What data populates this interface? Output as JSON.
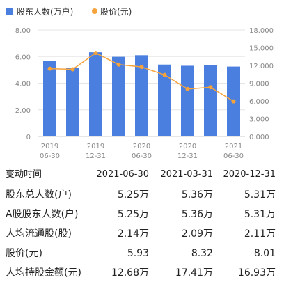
{
  "chart_data": {
    "type": "bar+line",
    "legend": [
      {
        "name": "股东人数(万户)",
        "color": "#4a7fe0",
        "shape": "square"
      },
      {
        "name": "股价(元)",
        "color": "#f5a33a",
        "shape": "circle"
      }
    ],
    "x_ticks": [
      {
        "top": "2019",
        "bottom": "06-30"
      },
      {
        "top": "2019",
        "bottom": "12-31"
      },
      {
        "top": "2020",
        "bottom": "06-30"
      },
      {
        "top": "2020",
        "bottom": "12-31"
      },
      {
        "top": "2021",
        "bottom": "06-30"
      }
    ],
    "bar_series": {
      "name": "股东人数(万户)",
      "color": "#4a7fe0",
      "values": [
        5.7,
        5.13,
        6.32,
        5.98,
        6.1,
        5.4,
        5.31,
        5.36,
        5.25
      ]
    },
    "line_series": {
      "name": "股价(元)",
      "color": "#f5a33a",
      "values": [
        11.45,
        11.35,
        14.1,
        12.15,
        11.75,
        10.4,
        8.01,
        8.32,
        5.93
      ]
    },
    "y_left": {
      "min": 0,
      "max": 8,
      "ticks": [
        "0",
        "2.00",
        "4.00",
        "6.00",
        "8.00"
      ]
    },
    "y_right": {
      "min": 0,
      "max": 18,
      "ticks": [
        "0.000",
        "3.000",
        "6.000",
        "9.000",
        "12.000",
        "15.000",
        "18.000"
      ]
    }
  },
  "table": {
    "header": {
      "label": "变动时间",
      "cols": [
        "2021-06-30",
        "2021-03-31",
        "2020-12-31"
      ]
    },
    "rows": [
      {
        "label": "股东总人数(户)",
        "values": [
          "5.25万",
          "5.36万",
          "5.31万"
        ]
      },
      {
        "label": "A股股东人数(户)",
        "values": [
          "5.25万",
          "5.36万",
          "5.31万"
        ]
      },
      {
        "label": "人均流通股(股)",
        "values": [
          "2.14万",
          "2.09万",
          "2.11万"
        ]
      },
      {
        "label": "股价(元)",
        "values": [
          "5.93",
          "8.32",
          "8.01"
        ]
      },
      {
        "label": "人均持股金额(元)",
        "values": [
          "12.68万",
          "17.41万",
          "16.93万"
        ]
      }
    ]
  }
}
